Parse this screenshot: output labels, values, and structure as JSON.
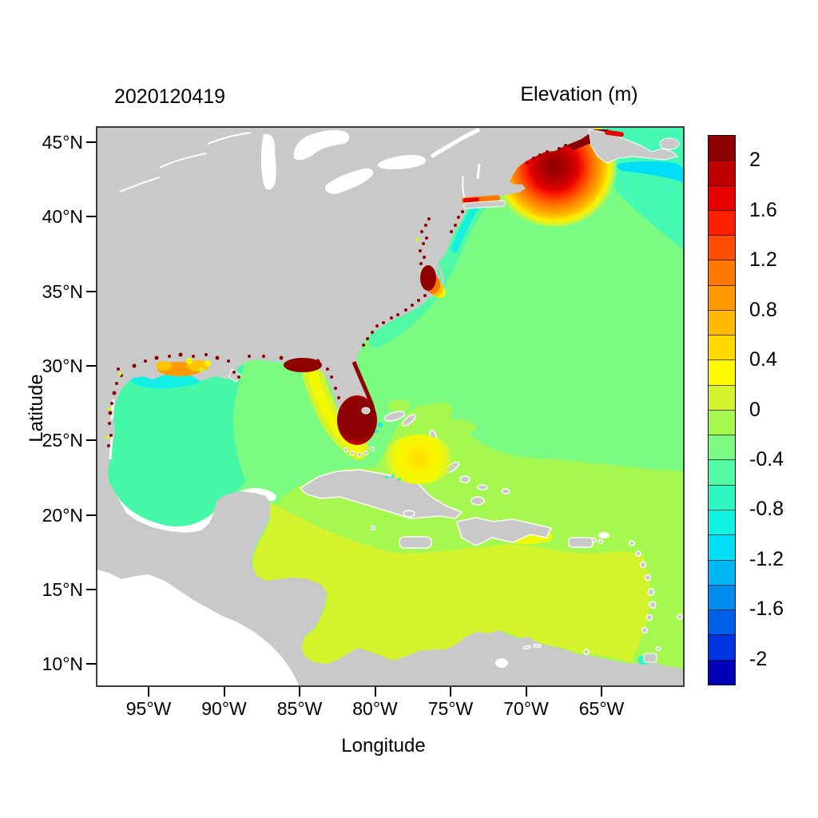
{
  "figure": {
    "left_title": "2020120419",
    "right_title": "Elevation (m)",
    "background": "#FFFFFF"
  },
  "axes": {
    "x": {
      "label": "Longitude",
      "ticks": [
        "95°W",
        "90°W",
        "85°W",
        "80°W",
        "75°W",
        "70°W",
        "65°W"
      ]
    },
    "y": {
      "label": "Latitude",
      "ticks": [
        "45°N",
        "40°N",
        "35°N",
        "30°N",
        "25°N",
        "20°N",
        "15°N",
        "10°N"
      ]
    }
  },
  "colorbar": {
    "tick_labels": [
      "2",
      "1.6",
      "1.2",
      "0.8",
      "0.4",
      "0",
      "-0.4",
      "-0.8",
      "-1.2",
      "-1.6",
      "-2"
    ],
    "segment_colors_top_to_bottom": [
      "#8B0000",
      "#C00000",
      "#E60000",
      "#FF2000",
      "#FF4E00",
      "#FF7800",
      "#FF9A00",
      "#FFB900",
      "#FFD900",
      "#FFF900",
      "#D4F32C",
      "#A5F84F",
      "#7CFB83",
      "#52F9A4",
      "#2EF7C4",
      "#0FF2E4",
      "#00DEF6",
      "#00B6F3",
      "#008CEF",
      "#0060EA",
      "#0034E2",
      "#0000B8"
    ]
  },
  "map_colors": {
    "land": "#C9C9C9",
    "no_data_or_dry": "#FFFFFF",
    "ocean_near_zero": "#7CFB83"
  },
  "chart_data": {
    "type": "heatmap",
    "title": "Elevation (m)",
    "timestamp_label": "2020120419",
    "xlabel": "Longitude",
    "ylabel": "Latitude",
    "x_ticks_deg_west": [
      95,
      90,
      85,
      80,
      75,
      70,
      65
    ],
    "y_ticks_deg_north": [
      45,
      40,
      35,
      30,
      25,
      20,
      15,
      10
    ],
    "lon_range_deg_west": [
      98.4,
      59.6
    ],
    "lat_range_deg_north": [
      8.6,
      46.0
    ],
    "grid": false,
    "legend_position": "right-colorbar",
    "colorbar": {
      "units": "m",
      "min": -2,
      "max": 2,
      "contour_step": 0.2,
      "labeled_ticks": [
        2,
        1.6,
        1.2,
        0.8,
        0.4,
        0,
        -0.4,
        -0.8,
        -1.2,
        -1.6,
        -2
      ]
    },
    "regions": [
      {
        "name": "Open North Atlantic",
        "approx_value_m": -0.1
      },
      {
        "name": "Subtropical Atlantic south of ~23°N and around Greater Antilles",
        "approx_value_m": 0.1
      },
      {
        "name": "Caribbean Sea (central and southern)",
        "approx_value_m": 0.3
      },
      {
        "name": "Western Gulf of Mexico / Bay of Campeche",
        "approx_value_m": -0.3
      },
      {
        "name": "Eastern Gulf of Mexico",
        "approx_value_m": -0.1
      },
      {
        "name": "Shelf off Nova Scotia (upper-right corner)",
        "approx_value_m": -0.4
      },
      {
        "name": "Coastal strip Long Island to Carolinas",
        "approx_value_m": -0.4
      },
      {
        "name": "Louisiana coastal bight (bright cyan pocket)",
        "approx_value_m": -0.7
      },
      {
        "name": "Gulf of Maine / Bay of Fundy surge maximum with concentric 0.4-to-2 contours",
        "approx_value_m": 2.2
      },
      {
        "name": "South Florida / Everglades flooded cells",
        "approx_value_m": 2.2
      },
      {
        "name": "Apalachee Bay (Florida Big Bend) coastal high",
        "approx_value_m": 2.0
      },
      {
        "name": "Pamlico Sound / Chesapeake coastal high",
        "approx_value_m": 1.4
      },
      {
        "name": "Long Island Sound",
        "approx_value_m": 1.1
      },
      {
        "name": "Bahamas banks high (yellow pocket)",
        "approx_value_m": 0.5
      },
      {
        "name": "Southwest Florida shelf yellow band",
        "approx_value_m": 0.5
      },
      {
        "name": "Louisiana-Mississippi marsh speckled cells",
        "approx_value_m": 1.0
      },
      {
        "name": "Scattered dark-red dry/flooded coastal speckles (Texas to Maine)",
        "approx_value_m": 2.0
      },
      {
        "name": "Land mask",
        "approx_value_m": null
      },
      {
        "name": "Pacific side outside model domain (white)",
        "approx_value_m": null
      }
    ]
  }
}
